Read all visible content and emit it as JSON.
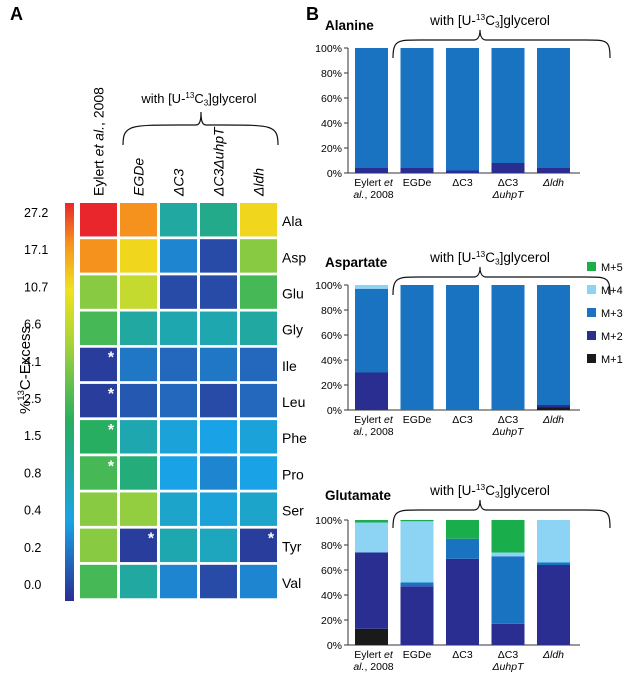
{
  "panel_labels": {
    "a": "A",
    "b": "B"
  },
  "bracket_label": "with [U-13C3]glycerol",
  "chart_data": [
    {
      "type": "heatmap",
      "panel": "A",
      "columns": [
        "Eylert et al., 2008",
        "EGDe",
        "ΔC3",
        "ΔC3ΔuhpT",
        "Δldh"
      ],
      "rows": [
        "Ala",
        "Asp",
        "Glu",
        "Gly",
        "Ile",
        "Leu",
        "Phe",
        "Pro",
        "Ser",
        "Tyr",
        "Val"
      ],
      "values": [
        [
          27.2,
          17.1,
          1.0,
          1.3,
          10.7
        ],
        [
          17.1,
          10.7,
          0.3,
          0.1,
          4.1
        ],
        [
          4.1,
          6.6,
          0.1,
          0.1,
          2.5
        ],
        [
          2.5,
          1.0,
          0.8,
          0.8,
          1.0
        ],
        [
          0.05,
          0.25,
          0.2,
          0.25,
          0.2
        ],
        [
          0.05,
          0.15,
          0.2,
          0.1,
          0.2
        ],
        [
          2.0,
          0.8,
          0.5,
          0.4,
          0.5
        ],
        [
          2.5,
          1.5,
          0.4,
          0.3,
          0.4
        ],
        [
          4.1,
          4.5,
          0.6,
          0.5,
          0.6
        ],
        [
          4.1,
          0.05,
          0.8,
          0.7,
          0.05
        ],
        [
          2.5,
          1.0,
          0.3,
          0.1,
          0.3
        ]
      ],
      "asterisks": [
        [
          4,
          0
        ],
        [
          5,
          0
        ],
        [
          6,
          0
        ],
        [
          7,
          0
        ],
        [
          9,
          1
        ],
        [
          9,
          4
        ]
      ],
      "colorbar_ticks": [
        "27.2",
        "17.1",
        "10.7",
        "6.6",
        "4.1",
        "2.5",
        "1.5",
        "0.8",
        "0.4",
        "0.2",
        "0.0"
      ],
      "colorbar_label": "%13C-Excess",
      "column_label": "with [U-13C3]glycerol"
    },
    {
      "type": "bar",
      "stacked": true,
      "title": "Alanine",
      "categories": [
        "Eylert et al., 2008",
        "EGDe",
        "ΔC3",
        "ΔC3 ΔuhpT",
        "Δldh"
      ],
      "series": [
        {
          "name": "M+1",
          "values": [
            0,
            0,
            0,
            0,
            0
          ]
        },
        {
          "name": "M+2",
          "values": [
            4,
            4,
            2,
            8,
            4
          ]
        },
        {
          "name": "M+3",
          "values": [
            96,
            96,
            98,
            92,
            96
          ]
        },
        {
          "name": "M+4",
          "values": [
            0,
            0,
            0,
            0,
            0
          ]
        },
        {
          "name": "M+5",
          "values": [
            0,
            0,
            0,
            0,
            0
          ]
        }
      ],
      "ylim": [
        0,
        100
      ],
      "yticks": [
        "0%",
        "20%",
        "40%",
        "60%",
        "80%",
        "100%"
      ],
      "bracket_label": "with [U-13C3]glycerol"
    },
    {
      "type": "bar",
      "stacked": true,
      "title": "Aspartate",
      "categories": [
        "Eylert et al., 2008",
        "EGDe",
        "ΔC3",
        "ΔC3 ΔuhpT",
        "Δldh"
      ],
      "series": [
        {
          "name": "M+1",
          "values": [
            0,
            0,
            0,
            0,
            2
          ]
        },
        {
          "name": "M+2",
          "values": [
            30,
            0,
            0,
            0,
            2
          ]
        },
        {
          "name": "M+3",
          "values": [
            67,
            100,
            100,
            100,
            96
          ]
        },
        {
          "name": "M+4",
          "values": [
            3,
            0,
            0,
            0,
            0
          ]
        },
        {
          "name": "M+5",
          "values": [
            0,
            0,
            0,
            0,
            0
          ]
        }
      ],
      "ylim": [
        0,
        100
      ],
      "yticks": [
        "0%",
        "20%",
        "40%",
        "60%",
        "80%",
        "100%"
      ],
      "bracket_label": "with [U-13C3]glycerol"
    },
    {
      "type": "bar",
      "stacked": true,
      "title": "Glutamate",
      "categories": [
        "Eylert et al., 2008",
        "EGDe",
        "ΔC3",
        "ΔC3 ΔuhpT",
        "Δldh"
      ],
      "series": [
        {
          "name": "M+1",
          "values": [
            13,
            0,
            0,
            0,
            0
          ]
        },
        {
          "name": "M+2",
          "values": [
            61,
            47,
            69,
            17,
            64
          ]
        },
        {
          "name": "M+3",
          "values": [
            0,
            3,
            16,
            54,
            2
          ]
        },
        {
          "name": "M+4",
          "values": [
            24,
            49,
            0,
            3,
            34
          ]
        },
        {
          "name": "M+5",
          "values": [
            2,
            1,
            15,
            26,
            0
          ]
        }
      ],
      "ylim": [
        0,
        100
      ],
      "yticks": [
        "0%",
        "20%",
        "40%",
        "60%",
        "80%",
        "100%"
      ],
      "bracket_label": "with [U-13C3]glycerol"
    }
  ],
  "legend": [
    {
      "label": "M+5",
      "color": "#1aad4b"
    },
    {
      "label": "M+4",
      "color": "#8dd3f3"
    },
    {
      "label": "M+3",
      "color": "#1a73c1"
    },
    {
      "label": "M+2",
      "color": "#2b2e91"
    },
    {
      "label": "M+1",
      "color": "#1a1a1a"
    }
  ]
}
